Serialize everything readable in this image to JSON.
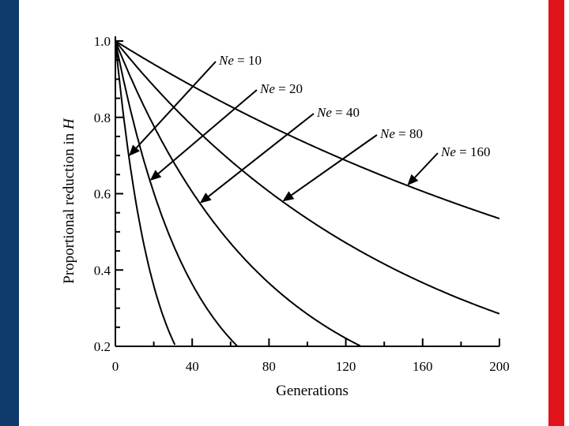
{
  "colors": {
    "left_band": "#0d3a6b",
    "right_band": "#e0141a"
  },
  "chart_data": {
    "type": "line",
    "title": "",
    "xlabel": "Generations",
    "ylabel_prefix": "Proportional reduction in ",
    "ylabel_var": "H",
    "xlim": [
      0,
      200
    ],
    "ylim": [
      0.2,
      1.0
    ],
    "x_ticks": [
      0,
      40,
      80,
      120,
      160,
      200
    ],
    "x_tick_labels": [
      "0",
      "40",
      "80",
      "120",
      "160",
      "200"
    ],
    "y_ticks": [
      0.2,
      0.4,
      0.6,
      0.8,
      1.0
    ],
    "y_tick_labels": [
      "0.2",
      "0.4",
      "0.6",
      "0.8",
      "1.0"
    ],
    "series": [
      {
        "name": "Ne = 10",
        "label_var": "Ne",
        "label_rest": " = 10",
        "ne": 10,
        "arrow_at_x": 7
      },
      {
        "name": "Ne = 20",
        "label_var": "Ne",
        "label_rest": " = 20",
        "ne": 20,
        "arrow_at_x": 18
      },
      {
        "name": "Ne = 40",
        "label_var": "Ne",
        "label_rest": " = 40",
        "ne": 40,
        "arrow_at_x": 44
      },
      {
        "name": "Ne = 80",
        "label_var": "Ne",
        "label_rest": " = 80",
        "ne": 80,
        "arrow_at_x": 87
      },
      {
        "name": "Ne = 160",
        "label_var": "Ne",
        "label_rest": " = 160",
        "ne": 160,
        "arrow_at_x": 152
      }
    ]
  }
}
